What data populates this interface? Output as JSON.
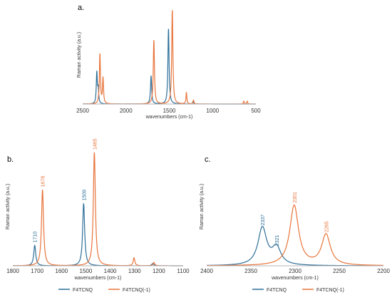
{
  "colors": {
    "f4tcnq": "#2e6f99",
    "f4tcnq_anion": "#e8743b",
    "axis": "#b5b5b5"
  },
  "chart_data": [
    {
      "panel": "a.",
      "type": "line",
      "xlabel": "wavenumbers (cm-1)",
      "ylabel": "Raman activity (a.u.)",
      "xlim": [
        2500,
        500
      ],
      "x_reversed": true,
      "xticks": [
        2500,
        2000,
        1500,
        1000,
        500
      ],
      "xtick_labels": [
        "2500",
        "2000",
        "1500",
        "1000",
        "500"
      ],
      "grid": false,
      "series": [
        {
          "series_key": "f4tcnq",
          "peaks": [
            {
              "x": 2337,
              "y": 0.33,
              "w": 7
            },
            {
              "x": 2321,
              "y": 0.15,
              "w": 7
            },
            {
              "x": 1710,
              "y": 0.3,
              "w": 8
            },
            {
              "x": 1509,
              "y": 0.8,
              "w": 8
            },
            {
              "x": 1225,
              "y": 0.03,
              "w": 6
            }
          ]
        },
        {
          "series_key": "f4tcnq_anion",
          "peaks": [
            {
              "x": 2301,
              "y": 0.53,
              "w": 7
            },
            {
              "x": 2265,
              "y": 0.27,
              "w": 7
            },
            {
              "x": 1678,
              "y": 0.68,
              "w": 8
            },
            {
              "x": 1465,
              "y": 1.0,
              "w": 8
            },
            {
              "x": 1302,
              "y": 0.12,
              "w": 6
            },
            {
              "x": 1220,
              "y": 0.04,
              "w": 6
            },
            {
              "x": 640,
              "y": 0.03,
              "w": 6
            },
            {
              "x": 600,
              "y": 0.03,
              "w": 6
            }
          ]
        }
      ]
    },
    {
      "panel": "b.",
      "type": "line",
      "xlabel": "wavenumbers (cm-1)",
      "ylabel": "Raman activity (a.u.)",
      "xlim": [
        1800,
        1100
      ],
      "x_reversed": true,
      "xticks": [
        1800,
        1700,
        1600,
        1500,
        1400,
        1300,
        1200,
        1100
      ],
      "xtick_labels": [
        "1800",
        "1700",
        "1600",
        "1500",
        "1400",
        "1300",
        "1200",
        "1100"
      ],
      "grid": false,
      "series": [
        {
          "series_key": "f4tcnq",
          "peaks": [
            {
              "x": 1710,
              "y": 0.18,
              "w": 5
            },
            {
              "x": 1509,
              "y": 0.55,
              "w": 5
            },
            {
              "x": 1225,
              "y": 0.02,
              "w": 5
            }
          ]
        },
        {
          "series_key": "f4tcnq_anion",
          "peaks": [
            {
              "x": 1678,
              "y": 0.67,
              "w": 5
            },
            {
              "x": 1465,
              "y": 1.0,
              "w": 5
            },
            {
              "x": 1302,
              "y": 0.07,
              "w": 4
            },
            {
              "x": 1220,
              "y": 0.03,
              "w": 4
            }
          ]
        }
      ],
      "annotations": [
        {
          "text": "1710",
          "x": 1710,
          "y": 0.18,
          "series_key": "f4tcnq"
        },
        {
          "text": "1678",
          "x": 1678,
          "y": 0.67,
          "series_key": "f4tcnq_anion"
        },
        {
          "text": "1509",
          "x": 1509,
          "y": 0.55,
          "series_key": "f4tcnq"
        },
        {
          "text": "1465",
          "x": 1465,
          "y": 1.0,
          "series_key": "f4tcnq_anion"
        }
      ]
    },
    {
      "panel": "c.",
      "type": "line",
      "xlabel": "wavenumbers (cm-1)",
      "ylabel": "Raman activity (a.u.)",
      "xlim": [
        2400,
        2200
      ],
      "x_reversed": true,
      "xticks": [
        2400,
        2350,
        2300,
        2250,
        2200
      ],
      "xtick_labels": [
        "2400",
        "2350",
        "2300",
        "2250",
        "2200"
      ],
      "grid": false,
      "series": [
        {
          "series_key": "f4tcnq",
          "peaks": [
            {
              "x": 2337,
              "y": 0.33,
              "w": 6
            },
            {
              "x": 2321,
              "y": 0.15,
              "w": 6
            }
          ]
        },
        {
          "series_key": "f4tcnq_anion",
          "peaks": [
            {
              "x": 2301,
              "y": 0.53,
              "w": 6
            },
            {
              "x": 2265,
              "y": 0.27,
              "w": 6
            }
          ]
        }
      ],
      "annotations": [
        {
          "text": "2337",
          "x": 2337,
          "y": 0.33,
          "series_key": "f4tcnq"
        },
        {
          "text": "2321",
          "x": 2321,
          "y": 0.15,
          "series_key": "f4tcnq"
        },
        {
          "text": "2301",
          "x": 2301,
          "y": 0.53,
          "series_key": "f4tcnq_anion"
        },
        {
          "text": "2265",
          "x": 2265,
          "y": 0.27,
          "series_key": "f4tcnq_anion"
        }
      ]
    }
  ],
  "legend": {
    "placement": "bottom",
    "entries": [
      {
        "series_key": "f4tcnq",
        "label": "F4TCNQ"
      },
      {
        "series_key": "f4tcnq_anion",
        "label": "F4TCNQ(-1)"
      }
    ]
  }
}
